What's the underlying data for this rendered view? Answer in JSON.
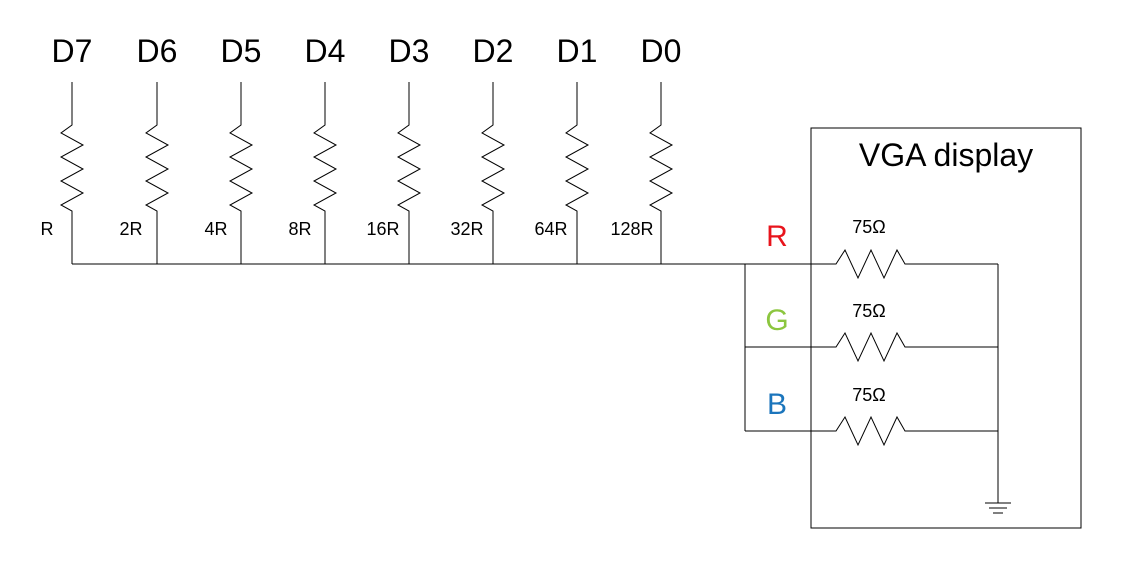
{
  "dac": {
    "data_lines": [
      "D7",
      "D6",
      "D5",
      "D4",
      "D3",
      "D2",
      "D1",
      "D0"
    ],
    "resistors": [
      "R",
      "2R",
      "4R",
      "8R",
      "16R",
      "32R",
      "64R",
      "128R"
    ]
  },
  "display": {
    "title": "VGA display",
    "channels": [
      {
        "label": "R",
        "color": "#e8141c",
        "resistor": "75Ω"
      },
      {
        "label": "G",
        "color": "#8cc63f",
        "resistor": "75Ω"
      },
      {
        "label": "B",
        "color": "#1b75bc",
        "resistor": "75Ω"
      }
    ]
  }
}
